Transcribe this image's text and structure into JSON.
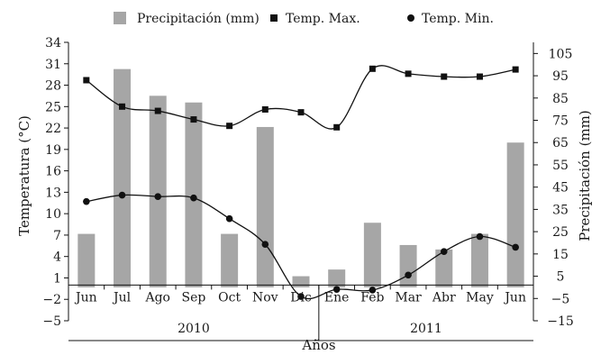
{
  "chart_data": {
    "type": "bar+line",
    "categories": [
      "Jun",
      "Jul",
      "Ago",
      "Sep",
      "Oct",
      "Nov",
      "Dic",
      "Ene",
      "Feb",
      "Mar",
      "Abr",
      "May",
      "Jun"
    ],
    "years": [
      {
        "label": "2010",
        "from": 0,
        "to": 6
      },
      {
        "label": "2011",
        "from": 7,
        "to": 12
      }
    ],
    "xlabel": "Años",
    "ylabel_left": "Temperatura (°C)",
    "ylabel_right": "Precipitación (mm)",
    "left_axis": {
      "min": -5,
      "max": 34,
      "ticks": [
        34,
        31,
        28,
        25,
        22,
        19,
        16,
        13,
        10,
        7,
        4,
        1,
        -2,
        -5
      ],
      "tick_labels": [
        "34",
        "31",
        "28",
        "25",
        "22",
        "19",
        "16",
        "13",
        "10",
        "7",
        "4",
        "1",
        "−2",
        "−5"
      ]
    },
    "right_axis": {
      "min": -15,
      "max": 110,
      "ticks": [
        105,
        95,
        85,
        75,
        65,
        55,
        45,
        35,
        25,
        15,
        5,
        -5,
        -15
      ],
      "tick_labels": [
        "105",
        "95",
        "85",
        "75",
        "65",
        "55",
        "45",
        "35",
        "25",
        "15",
        "5",
        "−5",
        "−15"
      ]
    },
    "series": [
      {
        "name": "Precipitación (mm)",
        "kind": "bar",
        "axis": "right",
        "color": "#a6a6a6",
        "values": [
          24,
          98,
          86,
          83,
          24,
          72,
          5,
          8,
          29,
          19,
          17,
          24,
          65
        ]
      },
      {
        "name": "Temp. Max.",
        "kind": "line",
        "axis": "left",
        "marker": "square",
        "color": "#111111",
        "values": [
          28.7,
          25.0,
          24.4,
          23.2,
          22.3,
          24.6,
          24.2,
          22.1,
          30.3,
          29.6,
          29.2,
          29.2,
          30.2
        ]
      },
      {
        "name": "Temp. Min.",
        "kind": "line",
        "axis": "left",
        "marker": "circle",
        "color": "#111111",
        "values": [
          11.7,
          12.6,
          12.4,
          12.2,
          9.3,
          5.7,
          -1.6,
          -0.6,
          -0.7,
          1.4,
          4.7,
          6.8,
          5.3
        ]
      }
    ],
    "legend": [
      {
        "label": "Precipitación (mm)",
        "symbol": "bar"
      },
      {
        "label": "Temp. Max.",
        "symbol": "square"
      },
      {
        "label": "Temp. Min.",
        "symbol": "circle"
      }
    ],
    "legend_position": "top"
  }
}
